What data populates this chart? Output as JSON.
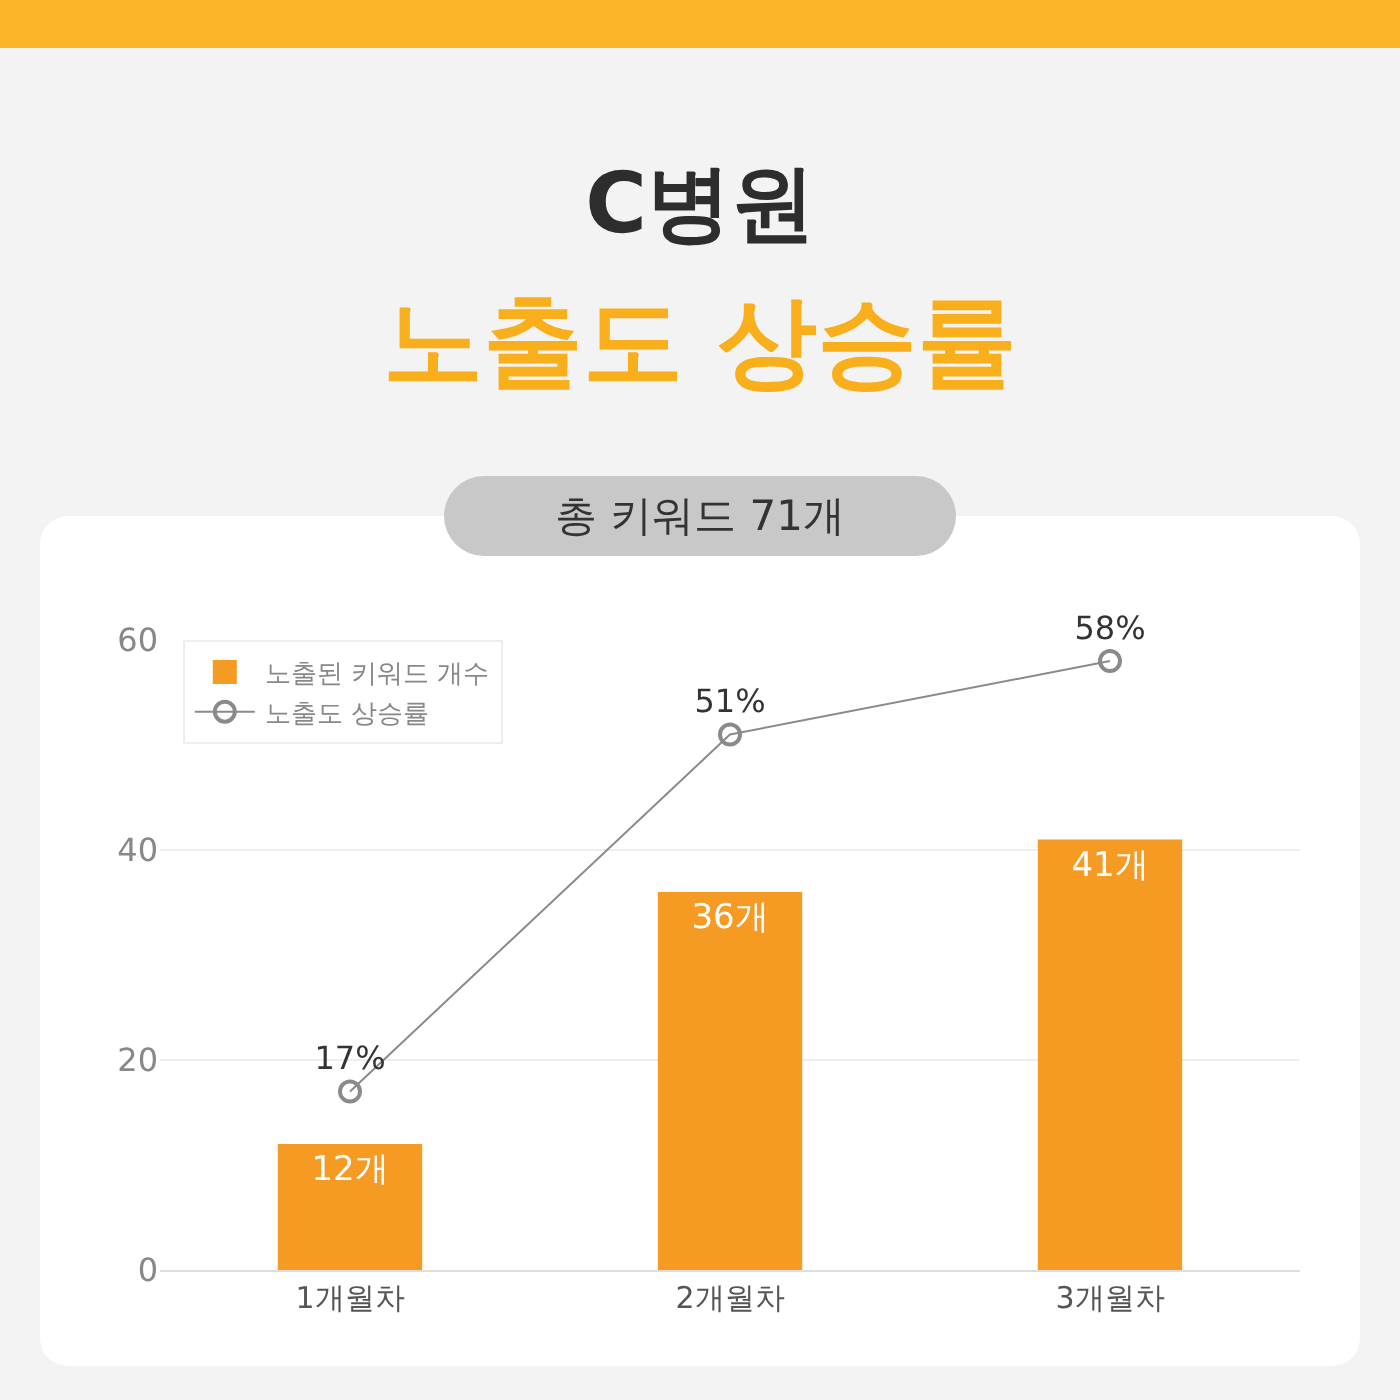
{
  "chart_data": {
    "type": "bar",
    "title": "C병원",
    "subtitle": "노출도 상승률",
    "annotations": [
      "총 키워드 71개"
    ],
    "categories": [
      "1개월차",
      "2개월차",
      "3개월차"
    ],
    "series": [
      {
        "name": "노출도 상승률",
        "type": "line",
        "color": "#8a8a8a",
        "values": [
          17,
          51,
          58
        ],
        "value_labels": [
          "17%",
          "51%",
          "58%"
        ],
        "marker": "circle",
        "line_style": "solid"
      },
      {
        "name": "노출된 키워드 개수",
        "color": "#f59a23",
        "values": [
          12,
          36,
          41
        ],
        "value_labels": [
          "12개",
          "36개",
          "41개"
        ]
      }
    ],
    "ylim": [
      0,
      60
    ],
    "yticks": [
      0,
      20,
      40,
      60
    ],
    "grid": "y",
    "legend": "top left"
  }
}
